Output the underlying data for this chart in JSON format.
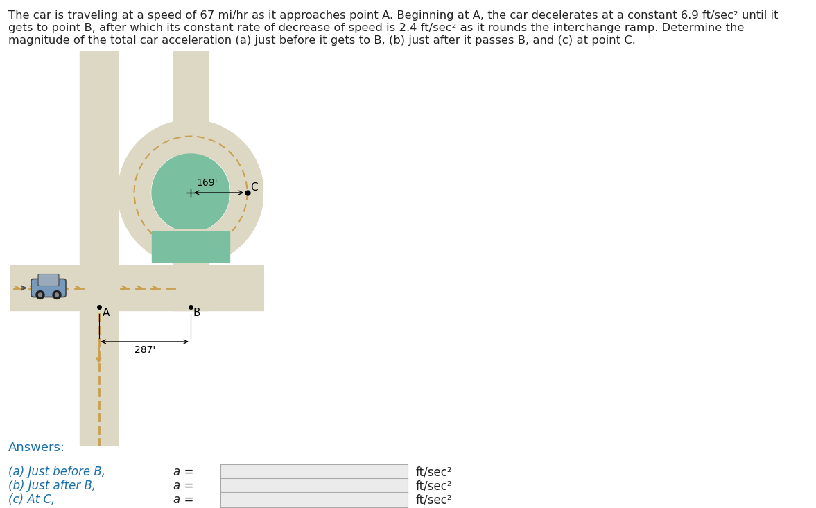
{
  "bg_color": "#ffffff",
  "diagram_bg": "#7abfa0",
  "road_color": "#ddd8c4",
  "road_color2": "#ccc8b4",
  "stripe_color": "#c8a050",
  "title_line1": "The car is traveling at a speed of 67 mi/hr as it approaches point A. Beginning at A, the car decelerates at a constant 6.9 ft/sec² until it",
  "title_line2": "gets to point B, after which its constant rate of decrease of speed is 2.4 ft/sec² as it rounds the interchange ramp. Determine the",
  "title_line3": "magnitude of the total car acceleration (a) just before it gets to B, (b) just after it passes B, and (c) at point C.",
  "label_169": "169'",
  "label_287": "287'",
  "label_A": "A",
  "label_B": "B",
  "label_C": "C",
  "answers_label": "Answers:",
  "answer_a_label": "(a) Just before B,",
  "answer_b_label": "(b) Just after B,",
  "answer_c_label": "(c) At C,",
  "a_equals": "a =",
  "unit_label": "ft/sec²",
  "blue_btn_color": "#2196F3",
  "text_color_blue": "#1a6fa8",
  "text_color_dark": "#222222",
  "input_box_color": "#ebebeb",
  "input_border_color": "#aaaaaa",
  "title_fontsize": 11.8,
  "answers_fontsize": 13,
  "row_label_fontsize": 12,
  "unit_fontsize": 12
}
